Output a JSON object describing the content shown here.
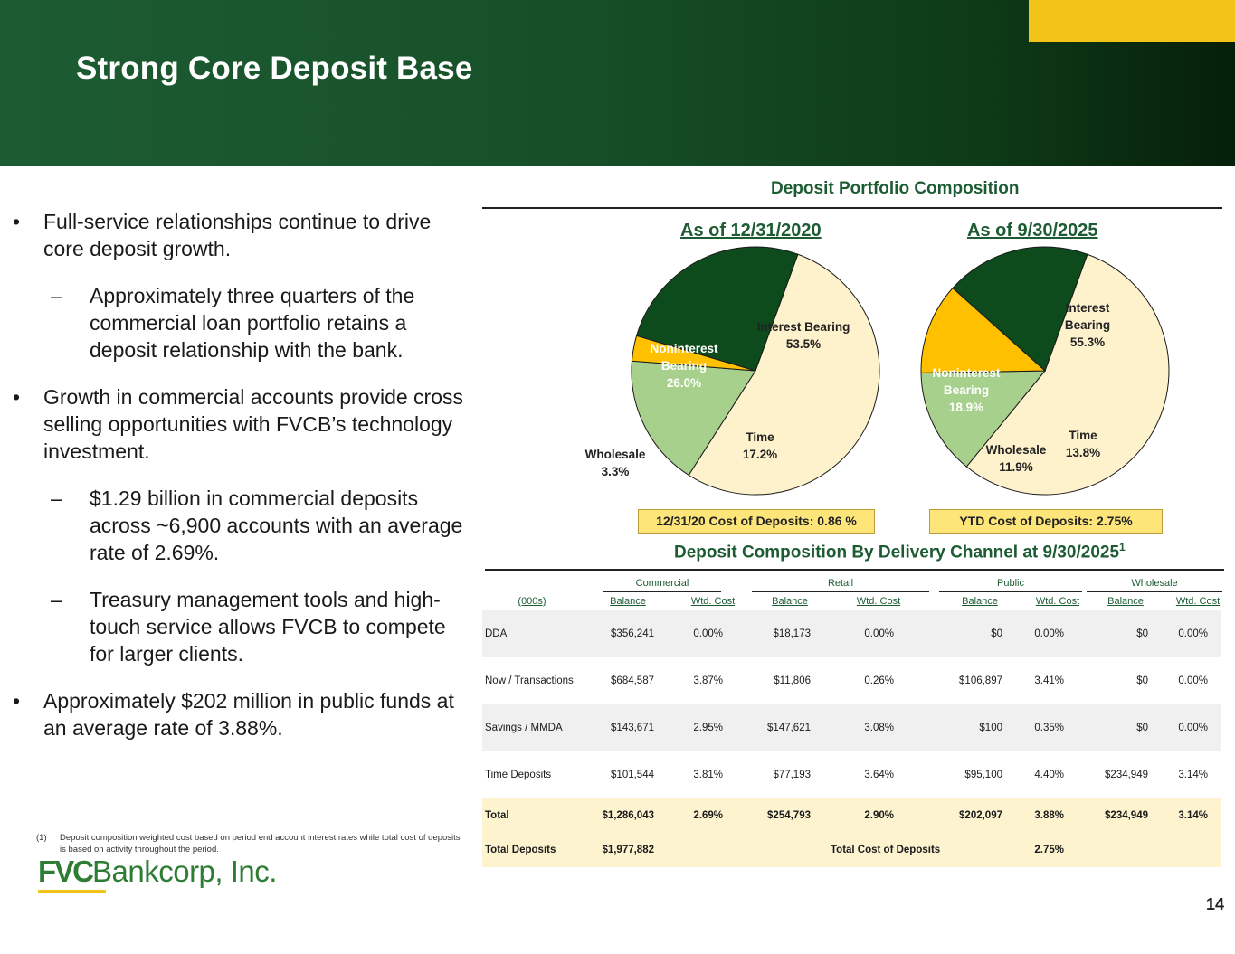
{
  "title": "Strong Core Deposit Base",
  "bullets": [
    {
      "level": 1,
      "text": "Full-service relationships continue to drive core deposit growth."
    },
    {
      "level": 2,
      "text": "Approximately three quarters of the commercial loan portfolio retains a deposit relationship with the bank."
    },
    {
      "level": 1,
      "text": "Growth in commercial accounts provide cross selling opportunities with FVCB’s technology investment."
    },
    {
      "level": 2,
      "text": "$1.29 billion in commercial deposits across ~6,900 accounts with an average rate of 2.69%."
    },
    {
      "level": 2,
      "text": "Treasury management tools and high-touch service allows FVCB to compete for larger clients."
    },
    {
      "level": 1,
      "text": "Approximately $202 million in public funds at an average rate of 3.88%."
    }
  ],
  "bullet_marks": {
    "level1": "•",
    "level2": "–"
  },
  "footnote": {
    "num": "(1)",
    "text": "Deposit composition weighted cost based on period end account interest rates while total cost of deposits is based on activity throughout the period."
  },
  "logo": {
    "bold": "FVC",
    "rest": "Bankcorp, Inc."
  },
  "page_number": "14",
  "portfolio": {
    "title": "Deposit Portfolio Composition",
    "cost_2020": "12/31/20 Cost of Deposits: 0.86 %",
    "cost_2025": "YTD Cost of Deposits: 2.75%"
  },
  "chart_data": [
    {
      "type": "pie",
      "title": "As of 12/31/2020",
      "slices": [
        {
          "label": "Interest Bearing",
          "value": 53.5,
          "display": "53.5%",
          "color": "#fef2cc"
        },
        {
          "label": "Time",
          "value": 17.2,
          "display": "17.2%",
          "color": "#a8d08d"
        },
        {
          "label": "Wholesale",
          "value": 3.3,
          "display": "3.3%",
          "color": "#ffc000"
        },
        {
          "label": "Noninterest Bearing",
          "value": 26.0,
          "display": "26.0%",
          "color": "#0d4a1c"
        }
      ]
    },
    {
      "type": "pie",
      "title": "As of 9/30/2025",
      "slices": [
        {
          "label": "Interest Bearing",
          "value": 55.3,
          "display": "55.3%",
          "color": "#fef2cc"
        },
        {
          "label": "Time",
          "value": 13.8,
          "display": "13.8%",
          "color": "#a8d08d"
        },
        {
          "label": "Wholesale",
          "value": 11.9,
          "display": "11.9%",
          "color": "#ffc000"
        },
        {
          "label": "Noninterest Bearing",
          "value": 18.9,
          "display": "18.9%",
          "color": "#0d4a1c"
        }
      ]
    }
  ],
  "table": {
    "title": "Deposit Composition By Delivery Channel at 9/30/2025",
    "title_sup": "1",
    "groups": [
      "Commercial",
      "Retail",
      "Public",
      "Wholesale"
    ],
    "units_label": "(000s)",
    "sub_headers": [
      "Balance",
      "Wtd. Cost",
      "Balance",
      "Wtd. Cost",
      "Balance",
      "Wtd. Cost",
      "Balance",
      "Wtd. Cost"
    ],
    "rows": [
      {
        "label": "DDA",
        "cells": [
          "$356,241",
          "0.00%",
          "$18,173",
          "0.00%",
          "$0",
          "0.00%",
          "$0",
          "0.00%"
        ]
      },
      {
        "label": "Now / Transactions",
        "cells": [
          "$684,587",
          "3.87%",
          "$11,806",
          "0.26%",
          "$106,897",
          "3.41%",
          "$0",
          "0.00%"
        ]
      },
      {
        "label": "Savings / MMDA",
        "cells": [
          "$143,671",
          "2.95%",
          "$147,621",
          "3.08%",
          "$100",
          "0.35%",
          "$0",
          "0.00%"
        ]
      },
      {
        "label": "Time Deposits",
        "cells": [
          "$101,544",
          "3.81%",
          "$77,193",
          "3.64%",
          "$95,100",
          "4.40%",
          "$234,949",
          "3.14%"
        ]
      }
    ],
    "total": {
      "label": "Total",
      "cells": [
        "$1,286,043",
        "2.69%",
        "$254,793",
        "2.90%",
        "$202,097",
        "3.88%",
        "$234,949",
        "3.14%"
      ]
    },
    "total_deposits": {
      "label": "Total Deposits",
      "value": "$1,977,882",
      "cost_label": "Total Cost of Deposits",
      "cost_value": "2.75%"
    }
  }
}
